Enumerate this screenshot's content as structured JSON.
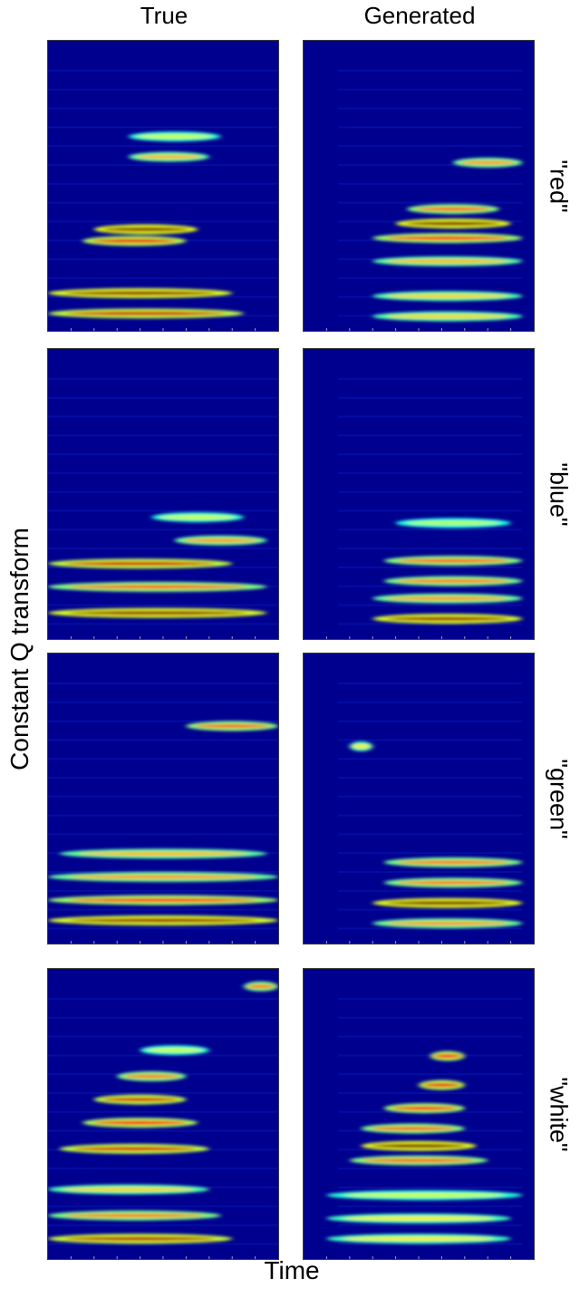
{
  "chart_data": {
    "type": "heatmap",
    "title": "",
    "columns": [
      "True",
      "Generated"
    ],
    "rows": [
      "\"red\"",
      "\"blue\"",
      "\"green\"",
      "\"white\""
    ],
    "xlabel": "Time",
    "ylabel": "Constant Q transform",
    "colormap": "jet",
    "colors": {
      "background": "#00008f",
      "low": "#0000ff",
      "mid": "#00ffff",
      "high_mid": "#ffff00",
      "peak": "#c80000"
    },
    "panels": [
      {
        "word": "red",
        "source": "True",
        "bands": [
          {
            "y": 0.94,
            "x0": 0.0,
            "x1": 0.85,
            "intensity": 0.85
          },
          {
            "y": 0.87,
            "x0": 0.0,
            "x1": 0.8,
            "intensity": 0.95
          },
          {
            "y": 0.69,
            "x0": 0.15,
            "x1": 0.6,
            "intensity": 0.8
          },
          {
            "y": 0.65,
            "x0": 0.2,
            "x1": 0.65,
            "intensity": 1.0
          },
          {
            "y": 0.4,
            "x0": 0.35,
            "x1": 0.7,
            "intensity": 0.45
          },
          {
            "y": 0.33,
            "x0": 0.35,
            "x1": 0.75,
            "intensity": 0.25
          }
        ]
      },
      {
        "word": "red",
        "source": "Generated",
        "bands": [
          {
            "y": 0.95,
            "x0": 0.3,
            "x1": 0.95,
            "intensity": 0.4
          },
          {
            "y": 0.88,
            "x0": 0.3,
            "x1": 0.95,
            "intensity": 0.4
          },
          {
            "y": 0.76,
            "x0": 0.3,
            "x1": 0.95,
            "intensity": 0.45
          },
          {
            "y": 0.68,
            "x0": 0.3,
            "x1": 0.95,
            "intensity": 0.7
          },
          {
            "y": 0.63,
            "x0": 0.4,
            "x1": 0.9,
            "intensity": 1.0
          },
          {
            "y": 0.58,
            "x0": 0.45,
            "x1": 0.85,
            "intensity": 0.6
          },
          {
            "y": 0.42,
            "x0": 0.65,
            "x1": 0.95,
            "intensity": 0.5
          }
        ]
      },
      {
        "word": "blue",
        "source": "True",
        "bands": [
          {
            "y": 0.91,
            "x0": 0.0,
            "x1": 0.95,
            "intensity": 0.95
          },
          {
            "y": 0.82,
            "x0": 0.0,
            "x1": 0.95,
            "intensity": 0.6
          },
          {
            "y": 0.74,
            "x0": 0.0,
            "x1": 0.8,
            "intensity": 0.85
          },
          {
            "y": 0.66,
            "x0": 0.55,
            "x1": 0.95,
            "intensity": 0.5
          },
          {
            "y": 0.58,
            "x0": 0.45,
            "x1": 0.85,
            "intensity": 0.25
          }
        ]
      },
      {
        "word": "blue",
        "source": "Generated",
        "bands": [
          {
            "y": 0.93,
            "x0": 0.3,
            "x1": 0.95,
            "intensity": 0.95
          },
          {
            "y": 0.86,
            "x0": 0.3,
            "x1": 0.95,
            "intensity": 0.5
          },
          {
            "y": 0.8,
            "x0": 0.35,
            "x1": 0.95,
            "intensity": 0.55
          },
          {
            "y": 0.73,
            "x0": 0.35,
            "x1": 0.95,
            "intensity": 0.6
          },
          {
            "y": 0.6,
            "x0": 0.4,
            "x1": 0.9,
            "intensity": 0.2
          }
        ]
      },
      {
        "word": "green",
        "source": "True",
        "bands": [
          {
            "y": 0.92,
            "x0": 0.0,
            "x1": 1.0,
            "intensity": 0.95
          },
          {
            "y": 0.85,
            "x0": 0.0,
            "x1": 1.0,
            "intensity": 0.7
          },
          {
            "y": 0.77,
            "x0": 0.0,
            "x1": 1.0,
            "intensity": 0.5
          },
          {
            "y": 0.69,
            "x0": 0.05,
            "x1": 0.95,
            "intensity": 0.45
          },
          {
            "y": 0.25,
            "x0": 0.6,
            "x1": 1.0,
            "intensity": 0.6
          }
        ]
      },
      {
        "word": "green",
        "source": "Generated",
        "bands": [
          {
            "y": 0.93,
            "x0": 0.3,
            "x1": 0.95,
            "intensity": 0.5
          },
          {
            "y": 0.86,
            "x0": 0.3,
            "x1": 0.95,
            "intensity": 1.0
          },
          {
            "y": 0.79,
            "x0": 0.35,
            "x1": 0.95,
            "intensity": 0.55
          },
          {
            "y": 0.72,
            "x0": 0.35,
            "x1": 0.95,
            "intensity": 0.55
          },
          {
            "y": 0.32,
            "x0": 0.2,
            "x1": 0.3,
            "intensity": 0.35
          }
        ]
      },
      {
        "word": "white",
        "source": "True",
        "bands": [
          {
            "y": 0.93,
            "x0": 0.0,
            "x1": 0.8,
            "intensity": 0.9
          },
          {
            "y": 0.85,
            "x0": 0.0,
            "x1": 0.75,
            "intensity": 0.55
          },
          {
            "y": 0.76,
            "x0": 0.0,
            "x1": 0.7,
            "intensity": 0.4
          },
          {
            "y": 0.62,
            "x0": 0.05,
            "x1": 0.7,
            "intensity": 0.85
          },
          {
            "y": 0.53,
            "x0": 0.15,
            "x1": 0.65,
            "intensity": 0.75
          },
          {
            "y": 0.45,
            "x0": 0.2,
            "x1": 0.6,
            "intensity": 0.85
          },
          {
            "y": 0.37,
            "x0": 0.3,
            "x1": 0.6,
            "intensity": 0.55
          },
          {
            "y": 0.28,
            "x0": 0.4,
            "x1": 0.7,
            "intensity": 0.25
          },
          {
            "y": 0.06,
            "x0": 0.85,
            "x1": 1.0,
            "intensity": 0.55
          }
        ]
      },
      {
        "word": "white",
        "source": "Generated",
        "bands": [
          {
            "y": 0.93,
            "x0": 0.1,
            "x1": 0.9,
            "intensity": 0.35
          },
          {
            "y": 0.86,
            "x0": 0.1,
            "x1": 0.9,
            "intensity": 0.35
          },
          {
            "y": 0.78,
            "x0": 0.1,
            "x1": 0.95,
            "intensity": 0.25
          },
          {
            "y": 0.66,
            "x0": 0.2,
            "x1": 0.8,
            "intensity": 0.6
          },
          {
            "y": 0.61,
            "x0": 0.25,
            "x1": 0.75,
            "intensity": 1.0
          },
          {
            "y": 0.55,
            "x0": 0.25,
            "x1": 0.7,
            "intensity": 0.6
          },
          {
            "y": 0.48,
            "x0": 0.35,
            "x1": 0.7,
            "intensity": 0.7
          },
          {
            "y": 0.4,
            "x0": 0.5,
            "x1": 0.7,
            "intensity": 0.8
          },
          {
            "y": 0.3,
            "x0": 0.55,
            "x1": 0.7,
            "intensity": 0.75
          }
        ]
      }
    ]
  }
}
